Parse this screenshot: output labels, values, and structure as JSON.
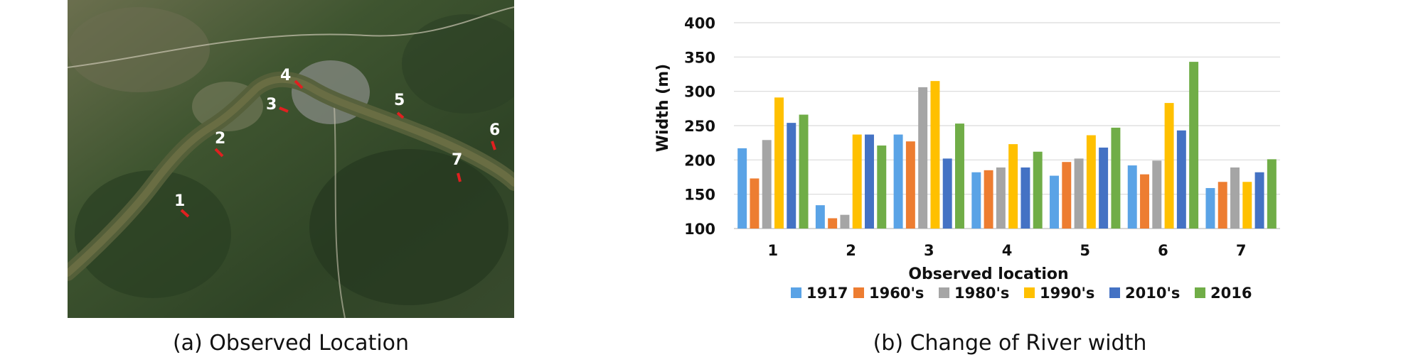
{
  "map": {
    "caption": "(a) Observed Location",
    "locations": [
      "1",
      "2",
      "3",
      "4",
      "5",
      "6",
      "7"
    ],
    "marker_color": "#e02020"
  },
  "chart_caption": "(b) Change of River width",
  "chart_data": {
    "type": "bar",
    "categories": [
      "1",
      "2",
      "3",
      "4",
      "5",
      "6",
      "7"
    ],
    "series": [
      {
        "name": "1917",
        "color": "#5aa3e6",
        "values": [
          217,
          134,
          237,
          182,
          177,
          192,
          159
        ]
      },
      {
        "name": "1960's",
        "color": "#ed7d31",
        "values": [
          173,
          115,
          227,
          185,
          197,
          179,
          168
        ]
      },
      {
        "name": "1980's",
        "color": "#a5a5a5",
        "values": [
          229,
          120,
          306,
          189,
          202,
          199,
          189
        ]
      },
      {
        "name": "1990's",
        "color": "#ffc000",
        "values": [
          291,
          237,
          315,
          223,
          236,
          283,
          168
        ]
      },
      {
        "name": "2010's",
        "color": "#4472c4",
        "values": [
          254,
          237,
          202,
          189,
          218,
          243,
          182
        ]
      },
      {
        "name": "2016",
        "color": "#70ad47",
        "values": [
          266,
          221,
          253,
          212,
          247,
          343,
          201
        ]
      }
    ],
    "xlabel": "Observed location",
    "ylabel": "Width (m)",
    "ylim": [
      100,
      400
    ],
    "yticks": [
      100,
      150,
      200,
      250,
      300,
      350,
      400
    ],
    "grid": true,
    "legend": "bottom"
  }
}
